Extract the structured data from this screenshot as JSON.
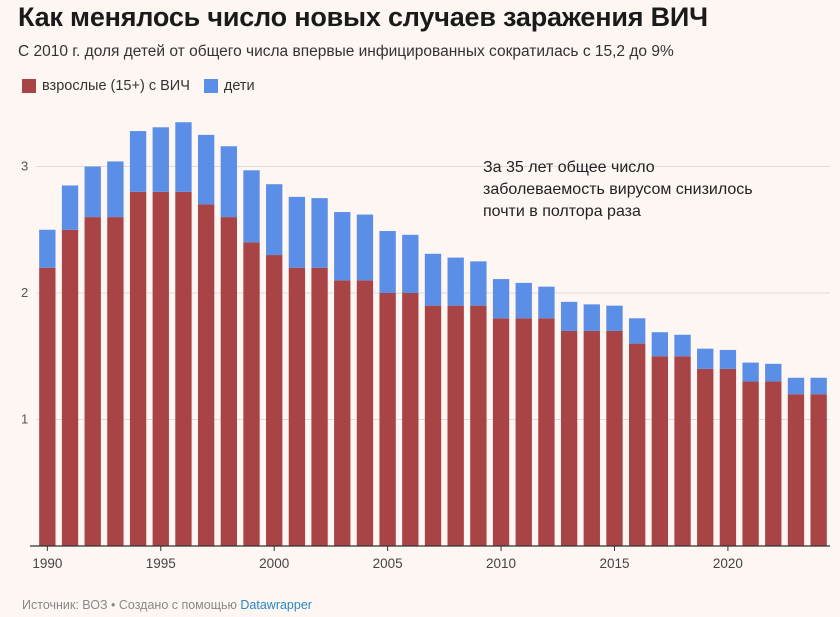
{
  "title": "Как менялось число новых случаев заражения ВИЧ",
  "subtitle": "С 2010 г. доля детей от общего числа впервые инфицированных сократилась с 15,2 до 9%",
  "annotation": [
    "За 35 лет общее число",
    "заболеваемость вирусом снизилось",
    "почти в полтора раза"
  ],
  "footer": {
    "source": "Источник: ВОЗ",
    "separator": "•",
    "created_with": "Создано с помощью",
    "tool": "Datawrapper"
  },
  "colors": {
    "adults": "#a84446",
    "children": "#5b8ee6",
    "grid": "#dcdcdc",
    "axis": "#333333"
  },
  "chart_data": {
    "type": "bar",
    "stacked": true,
    "categories": [
      1990,
      1991,
      1992,
      1993,
      1994,
      1995,
      1996,
      1997,
      1998,
      1999,
      2000,
      2001,
      2002,
      2003,
      2004,
      2005,
      2006,
      2007,
      2008,
      2009,
      2010,
      2011,
      2012,
      2013,
      2014,
      2015,
      2016,
      2017,
      2018,
      2019,
      2020,
      2021,
      2022,
      2023,
      2024
    ],
    "series": [
      {
        "name": "взрослые (15+) с ВИЧ",
        "color": "#a84446",
        "values": [
          2.2,
          2.5,
          2.6,
          2.6,
          2.8,
          2.8,
          2.8,
          2.7,
          2.6,
          2.4,
          2.3,
          2.2,
          2.2,
          2.1,
          2.1,
          2.0,
          2.0,
          1.9,
          1.9,
          1.9,
          1.8,
          1.8,
          1.8,
          1.7,
          1.7,
          1.7,
          1.6,
          1.5,
          1.5,
          1.4,
          1.4,
          1.3,
          1.3,
          1.2,
          1.2
        ]
      },
      {
        "name": "дети",
        "color": "#5b8ee6",
        "values": [
          0.3,
          0.35,
          0.4,
          0.44,
          0.48,
          0.51,
          0.55,
          0.55,
          0.56,
          0.57,
          0.56,
          0.56,
          0.55,
          0.54,
          0.52,
          0.49,
          0.46,
          0.41,
          0.38,
          0.35,
          0.31,
          0.28,
          0.25,
          0.23,
          0.21,
          0.2,
          0.2,
          0.19,
          0.17,
          0.16,
          0.15,
          0.15,
          0.14,
          0.13,
          0.13
        ]
      }
    ],
    "xticks": [
      "1990",
      "1995",
      "2000",
      "2005",
      "2010",
      "2015",
      "2020"
    ],
    "yticks": [
      "1",
      "2",
      "3"
    ],
    "ylim": [
      0,
      3.4
    ],
    "grid": true,
    "legend_position": "top-left"
  }
}
